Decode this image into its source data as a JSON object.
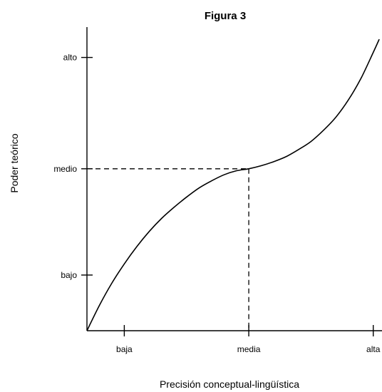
{
  "chart_data": {
    "type": "line",
    "title": "Figura 3",
    "xlabel": "Precisión conceptual-lingüística",
    "ylabel": "Poder teórico",
    "xlim": [
      0,
      3
    ],
    "ylim": [
      0,
      3
    ],
    "x_ticks": [
      {
        "value": 0.3,
        "label": "baja"
      },
      {
        "value": 1.3,
        "label": "media"
      },
      {
        "value": 2.3,
        "label": "alta"
      }
    ],
    "y_ticks": [
      {
        "value": 0.55,
        "label": "bajo"
      },
      {
        "value": 1.6,
        "label": "medio"
      },
      {
        "value": 2.7,
        "label": "alto"
      }
    ],
    "series": [
      {
        "x": [
          0,
          0.1,
          0.2,
          0.3,
          0.4,
          0.5,
          0.6,
          0.7,
          0.8,
          0.9,
          1.0,
          1.1,
          1.2,
          1.3,
          1.4,
          1.5,
          1.6,
          1.7,
          1.8,
          1.9,
          2.0,
          2.1,
          2.2,
          2.3,
          2.348
        ],
        "y": [
          0.0,
          0.25,
          0.47,
          0.66,
          0.83,
          0.98,
          1.11,
          1.22,
          1.32,
          1.41,
          1.48,
          1.54,
          1.58,
          1.6,
          1.63,
          1.67,
          1.72,
          1.79,
          1.87,
          1.98,
          2.11,
          2.28,
          2.49,
          2.75,
          2.88
        ]
      }
    ],
    "reference_point": {
      "x": 1.3,
      "y": 1.6
    },
    "reference_lines": "dashed",
    "grid": false,
    "line_color": "#000000"
  }
}
